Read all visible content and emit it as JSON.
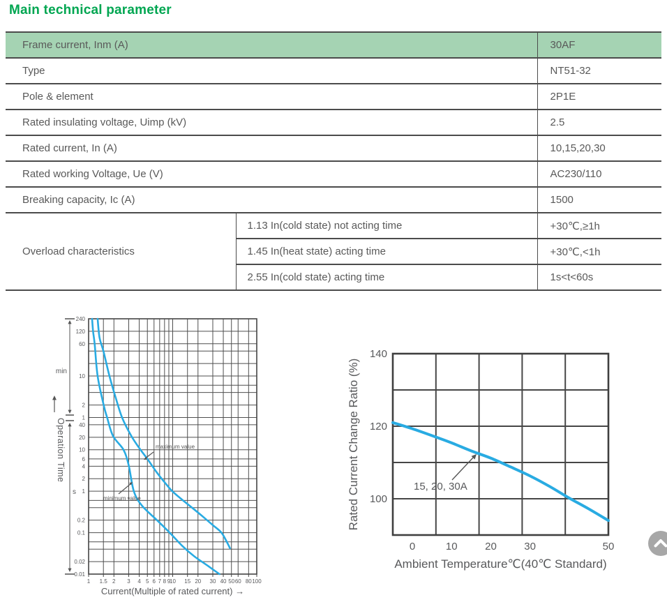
{
  "page": {
    "title": "Main technical parameter"
  },
  "colors": {
    "title_green": "#00a651",
    "highlight_row_bg": "#a5d3b3",
    "table_line": "#4b4b4b",
    "text_gray": "#595959",
    "curve_blue": "#29abe2",
    "grid_gray": "#4e4e4e",
    "back_top_gray": "#a7a7a7"
  },
  "table": {
    "rows": [
      {
        "label": "Frame current, Inm (A)",
        "value": "30AF"
      },
      {
        "label": "Type",
        "value": "NT51-32"
      },
      {
        "label": "Pole & element",
        "value": "2P1E"
      },
      {
        "label": "Rated insulating voltage, Uimp (kV)",
        "value": "2.5"
      },
      {
        "label": "Rated current, In (A)",
        "value": "10,15,20,30"
      },
      {
        "label": "Rated working Voltage, Ue (V)",
        "value": "AC230/110"
      },
      {
        "label": "Breaking capacity, Ic (A)",
        "value": "1500"
      }
    ],
    "overload": {
      "label": "Overload characteristics",
      "subrows": [
        {
          "condition": "1.13 In(cold state) not acting time",
          "value": "+30℃,≥1h"
        },
        {
          "condition": "1.45 In(heat state) acting time",
          "value": "+30℃,<1h"
        },
        {
          "condition": "2.55 In(cold state) acting time",
          "value": "1s<t<60s"
        }
      ]
    }
  },
  "chart_data": [
    {
      "id": "time-current-curve",
      "type": "line",
      "x_scale": "log",
      "y_scale": "log",
      "title": "",
      "xlabel": "Current(Multiple of rated current) →",
      "ylabel": "Operation Time",
      "y_unit_upper": "min",
      "y_unit_lower": "s",
      "xlim": [
        1,
        100
      ],
      "ylim_seconds": [
        0.01,
        14400
      ],
      "x_ticks": [
        [
          "1",
          1
        ],
        [
          "1.5",
          1.5
        ],
        [
          "2",
          2
        ],
        [
          "3",
          3
        ],
        [
          "4",
          4
        ],
        [
          "5",
          5
        ],
        [
          "6",
          6
        ],
        [
          "7",
          7
        ],
        [
          "8",
          8
        ],
        [
          "9",
          9
        ],
        [
          "10",
          10
        ],
        [
          "15",
          15
        ],
        [
          "20",
          20
        ],
        [
          "30",
          30
        ],
        [
          "40",
          40
        ],
        [
          "50",
          50
        ],
        [
          "60",
          60
        ],
        [
          "80",
          80
        ],
        [
          "100",
          100
        ]
      ],
      "y_ticks": [
        [
          "240",
          14400
        ],
        [
          "120",
          7200
        ],
        [
          "60",
          3600
        ],
        [
          "10",
          600
        ],
        [
          "2",
          120
        ],
        [
          "1",
          60
        ],
        [
          "40",
          40
        ],
        [
          "20",
          20
        ],
        [
          "10",
          10
        ],
        [
          "6",
          6
        ],
        [
          "4",
          4
        ],
        [
          "2",
          2
        ],
        [
          "1",
          1
        ],
        [
          "0.2",
          0.2
        ],
        [
          "0.1",
          0.1
        ],
        [
          "0.02",
          0.02
        ],
        [
          "0.01",
          0.01
        ]
      ],
      "y_gridlines_s": [
        0.01,
        0.02,
        0.04,
        0.06,
        0.1,
        0.2,
        0.4,
        0.6,
        1,
        2,
        4,
        6,
        10,
        20,
        40,
        60,
        120,
        240,
        360,
        600,
        1200,
        2400,
        3600,
        7200,
        14400
      ],
      "grid": true,
      "series": [
        {
          "name": "minimum value",
          "points": [
            [
              1.1,
              14400
            ],
            [
              1.13,
              7200
            ],
            [
              1.18,
              3600
            ],
            [
              1.28,
              600
            ],
            [
              1.51,
              120
            ],
            [
              1.66,
              60
            ],
            [
              1.95,
              21.5
            ],
            [
              2.6,
              10
            ],
            [
              3.0,
              4.2
            ],
            [
              3.45,
              1
            ],
            [
              4.3,
              0.45
            ],
            [
              6.5,
              0.2
            ],
            [
              9.2,
              0.1
            ],
            [
              13,
              0.048
            ],
            [
              18,
              0.027
            ],
            [
              26,
              0.016
            ],
            [
              36,
              0.01
            ]
          ]
        },
        {
          "name": "maximum value",
          "points": [
            [
              1.28,
              14400
            ],
            [
              1.35,
              5000
            ],
            [
              1.5,
              2400
            ],
            [
              1.77,
              600
            ],
            [
              2.1,
              180
            ],
            [
              2.5,
              60
            ],
            [
              3.2,
              22
            ],
            [
              4,
              11
            ],
            [
              5,
              6
            ],
            [
              6.5,
              2.8
            ],
            [
              8.2,
              1.55
            ],
            [
              9.9,
              1
            ],
            [
              13,
              0.62
            ],
            [
              17,
              0.4
            ],
            [
              22,
              0.26
            ],
            [
              30,
              0.152
            ],
            [
              38,
              0.1
            ],
            [
              45,
              0.055
            ],
            [
              48,
              0.042
            ]
          ]
        }
      ]
    },
    {
      "id": "temperature-derating-curve",
      "type": "line",
      "title": "",
      "xlabel": "Ambient Temperature℃(40℃ Standard)",
      "ylabel": "Rated Current Change Ratio (%)",
      "xlim": [
        -5,
        50
      ],
      "ylim": [
        90,
        140
      ],
      "x_ticks": [
        [
          "0",
          0
        ],
        [
          "10",
          10
        ],
        [
          "20",
          20
        ],
        [
          "30",
          30
        ],
        [
          "50",
          50
        ]
      ],
      "y_ticks": [
        [
          "140",
          140
        ],
        [
          "120",
          120
        ],
        [
          "100",
          100
        ]
      ],
      "grid_rows": 5,
      "grid_cols": 5,
      "annotation": "15,  20,  30A",
      "series": [
        {
          "name": "15, 20, 30A",
          "points": [
            [
              -5,
              121
            ],
            [
              0,
              119.3
            ],
            [
              5,
              117.4
            ],
            [
              10,
              115.4
            ],
            [
              15,
              113.2
            ],
            [
              20,
              111.2
            ],
            [
              25,
              108.8
            ],
            [
              30,
              106.3
            ],
            [
              35,
              103.4
            ],
            [
              40,
              100.2
            ],
            [
              45,
              97.2
            ],
            [
              50,
              94
            ]
          ]
        }
      ]
    }
  ],
  "back_to_top": {
    "icon": "chevron-up-icon"
  }
}
